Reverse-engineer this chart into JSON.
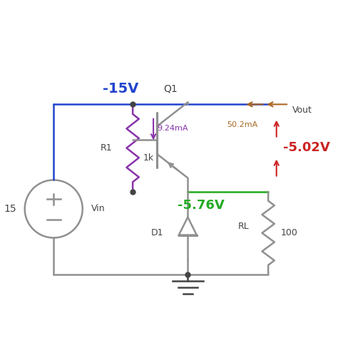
{
  "bg_color": "#ffffff",
  "line_color": "#909090",
  "blue_color": "#2244cc",
  "purple_color": "#8833aa",
  "green_color": "#22aa22",
  "red_color": "#cc2222",
  "brown_color": "#aa6622",
  "dark_color": "#444444",
  "labels": {
    "voltage_supply": "-15V",
    "q1": "Q1",
    "current_base": "9.24mA",
    "r1_label": "R1",
    "r1_value": "1k",
    "voltage_base": "-5.76V",
    "d1": "D1",
    "vin_label": "Vin",
    "vin_value": "15",
    "current_collector": "50.2mA",
    "vout_label": "Vout",
    "vout_value": "-5.02V",
    "rl_label": "RL",
    "rl_value": "100"
  }
}
